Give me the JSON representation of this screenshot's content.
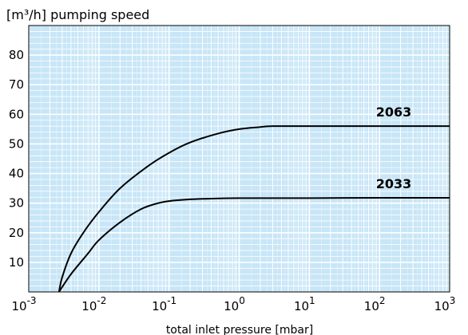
{
  "chart_data": {
    "type": "line",
    "title": "",
    "ylabel": "[m³/h] pumping speed",
    "xlabel": "total inlet pressure [mbar]",
    "xscale": "log",
    "xlim": [
      0.001,
      1000
    ],
    "ylim": [
      0,
      90
    ],
    "x_ticks": [
      {
        "value": 0.001,
        "base": "10",
        "exp": "-3"
      },
      {
        "value": 0.01,
        "base": "10",
        "exp": "-2"
      },
      {
        "value": 0.1,
        "base": "10",
        "exp": "-1"
      },
      {
        "value": 1,
        "base": "10",
        "exp": "0"
      },
      {
        "value": 10,
        "base": "10",
        "exp": "1"
      },
      {
        "value": 100,
        "base": "10",
        "exp": "2"
      },
      {
        "value": 1000,
        "base": "10",
        "exp": "3"
      }
    ],
    "y_ticks": [
      10,
      20,
      30,
      40,
      50,
      60,
      70,
      80
    ],
    "grid": true,
    "background_color": "#c8e6f7",
    "grid_color": "#ffffff",
    "line_color": "#000000",
    "series": [
      {
        "name": "2063",
        "x": [
          0.0027,
          0.003,
          0.004,
          0.006,
          0.01,
          0.02,
          0.05,
          0.1,
          0.2,
          0.5,
          1,
          2,
          3,
          10,
          100,
          1000
        ],
        "y": [
          0,
          5,
          13,
          20,
          27,
          35,
          42.5,
          47,
          50.5,
          53.5,
          55,
          55.7,
          56,
          56,
          56,
          56
        ]
      },
      {
        "name": "2033",
        "x": [
          0.0027,
          0.004,
          0.007,
          0.01,
          0.02,
          0.04,
          0.07,
          0.1,
          0.2,
          0.5,
          1,
          10,
          100,
          1000
        ],
        "y": [
          0,
          6,
          13,
          17.5,
          23.5,
          28,
          30,
          30.7,
          31.3,
          31.6,
          31.7,
          31.7,
          31.8,
          31.8
        ]
      }
    ]
  }
}
